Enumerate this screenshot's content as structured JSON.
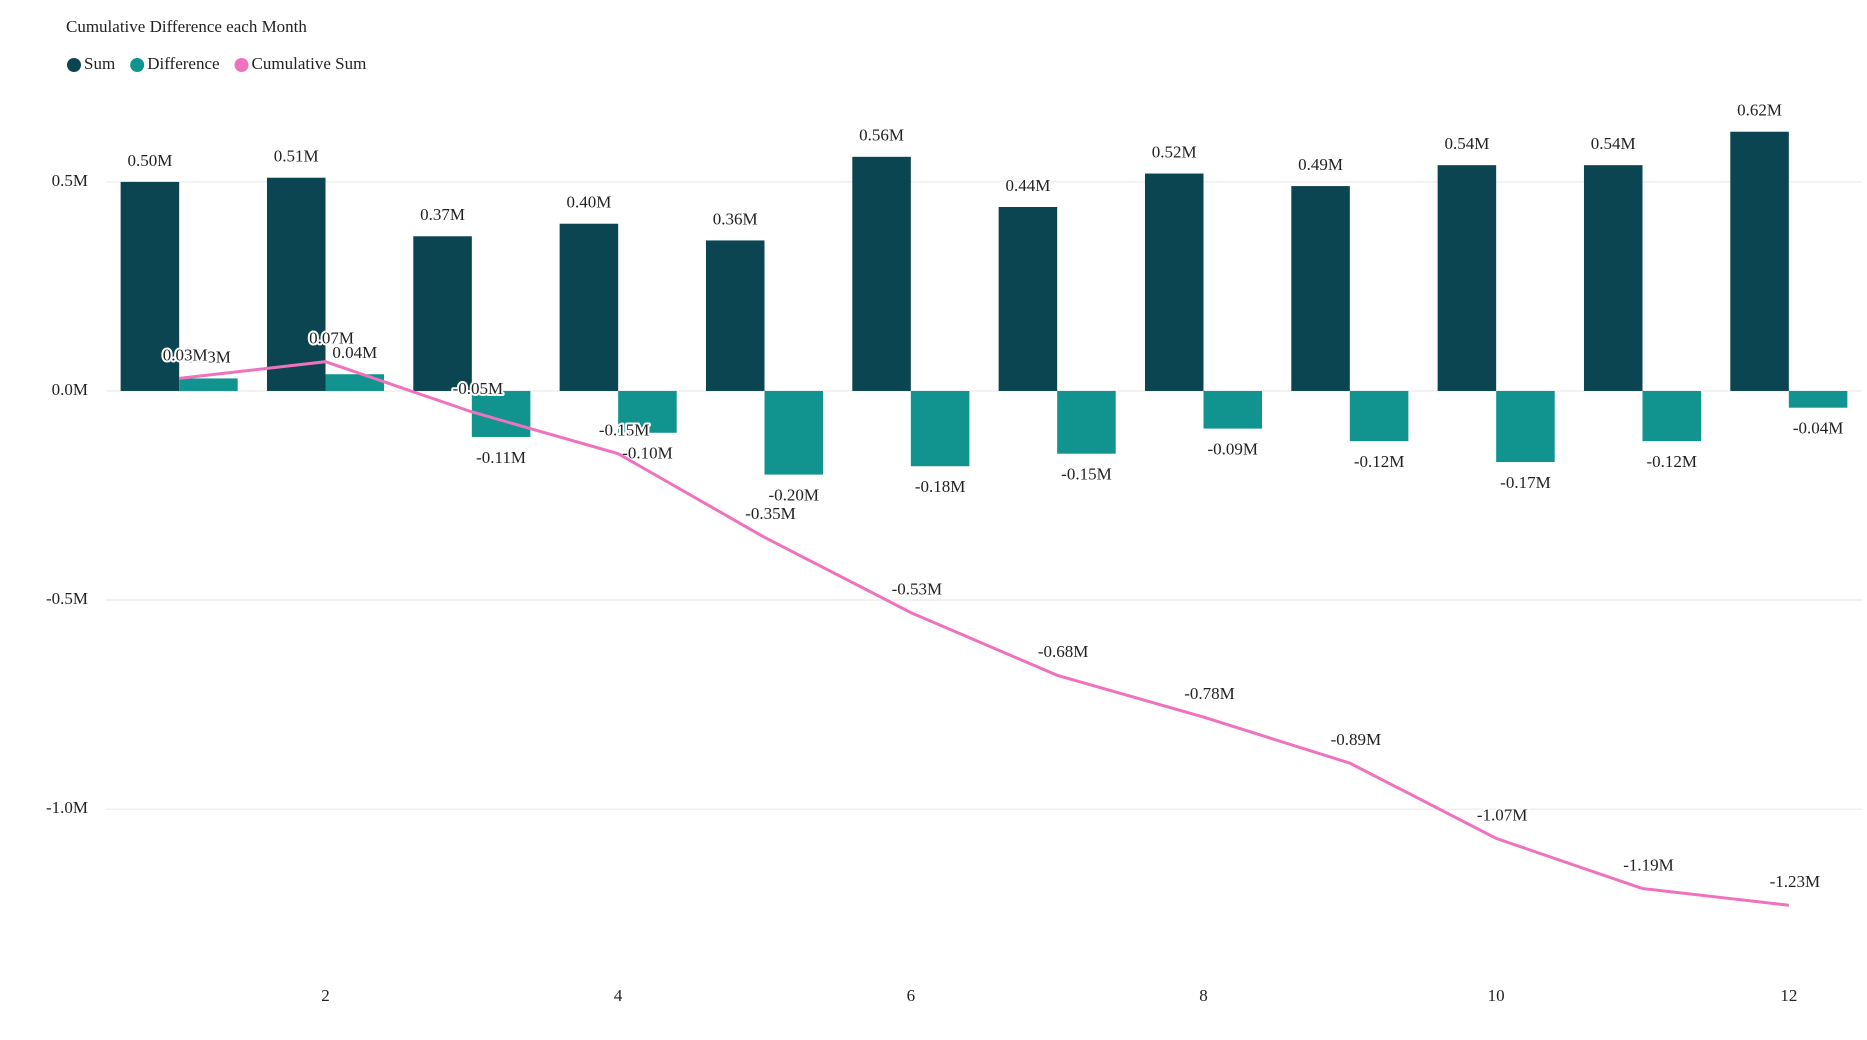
{
  "chart_data": {
    "type": "combo",
    "title": "Cumulative Difference each Month",
    "x": [
      1,
      2,
      3,
      4,
      5,
      6,
      7,
      8,
      9,
      10,
      11,
      12
    ],
    "xlim": [
      0.5,
      12.5
    ],
    "xticks": [
      2,
      4,
      6,
      8,
      10,
      12
    ],
    "ylim": [
      -1380000,
      660000
    ],
    "yticks": [
      {
        "value": -1000000,
        "label": "-1.0M"
      },
      {
        "value": -500000,
        "label": "-0.5M"
      },
      {
        "value": 0,
        "label": "0.0M"
      },
      {
        "value": 500000,
        "label": "0.5M"
      }
    ],
    "grid": true,
    "legend": "top-left",
    "series": [
      {
        "name": "Sum",
        "type": "bar",
        "color": "#0b4551",
        "values": [
          500000,
          510000,
          370000,
          400000,
          360000,
          560000,
          440000,
          520000,
          490000,
          540000,
          540000,
          620000
        ],
        "value_labels": [
          "0.50M",
          "0.51M",
          "0.37M",
          "0.40M",
          "0.36M",
          "0.56M",
          "0.44M",
          "0.52M",
          "0.49M",
          "0.54M",
          "0.54M",
          "0.62M"
        ]
      },
      {
        "name": "Difference",
        "type": "bar",
        "color": "#11948f",
        "values": [
          30000,
          40000,
          -110000,
          -100000,
          -200000,
          -180000,
          -150000,
          -90000,
          -120000,
          -170000,
          -120000,
          -40000
        ],
        "value_labels": [
          "0.03M",
          "0.04M",
          "-0.11M",
          "-0.10M",
          "-0.20M",
          "-0.18M",
          "-0.15M",
          "-0.09M",
          "-0.12M",
          "-0.17M",
          "-0.12M",
          "-0.04M"
        ]
      },
      {
        "name": "Cumulative Sum",
        "type": "line",
        "color": "#ee72bd",
        "values": [
          30000,
          70000,
          -50000,
          -150000,
          -350000,
          -530000,
          -680000,
          -780000,
          -890000,
          -1070000,
          -1190000,
          -1230000
        ],
        "value_labels": [
          "0.03M",
          "0.07M",
          "-0.05M",
          "-0.15M",
          "-0.35M",
          "-0.53M",
          "-0.68M",
          "-0.78M",
          "-0.89M",
          "-1.07M",
          "-1.19M",
          "-1.23M"
        ]
      }
    ]
  }
}
